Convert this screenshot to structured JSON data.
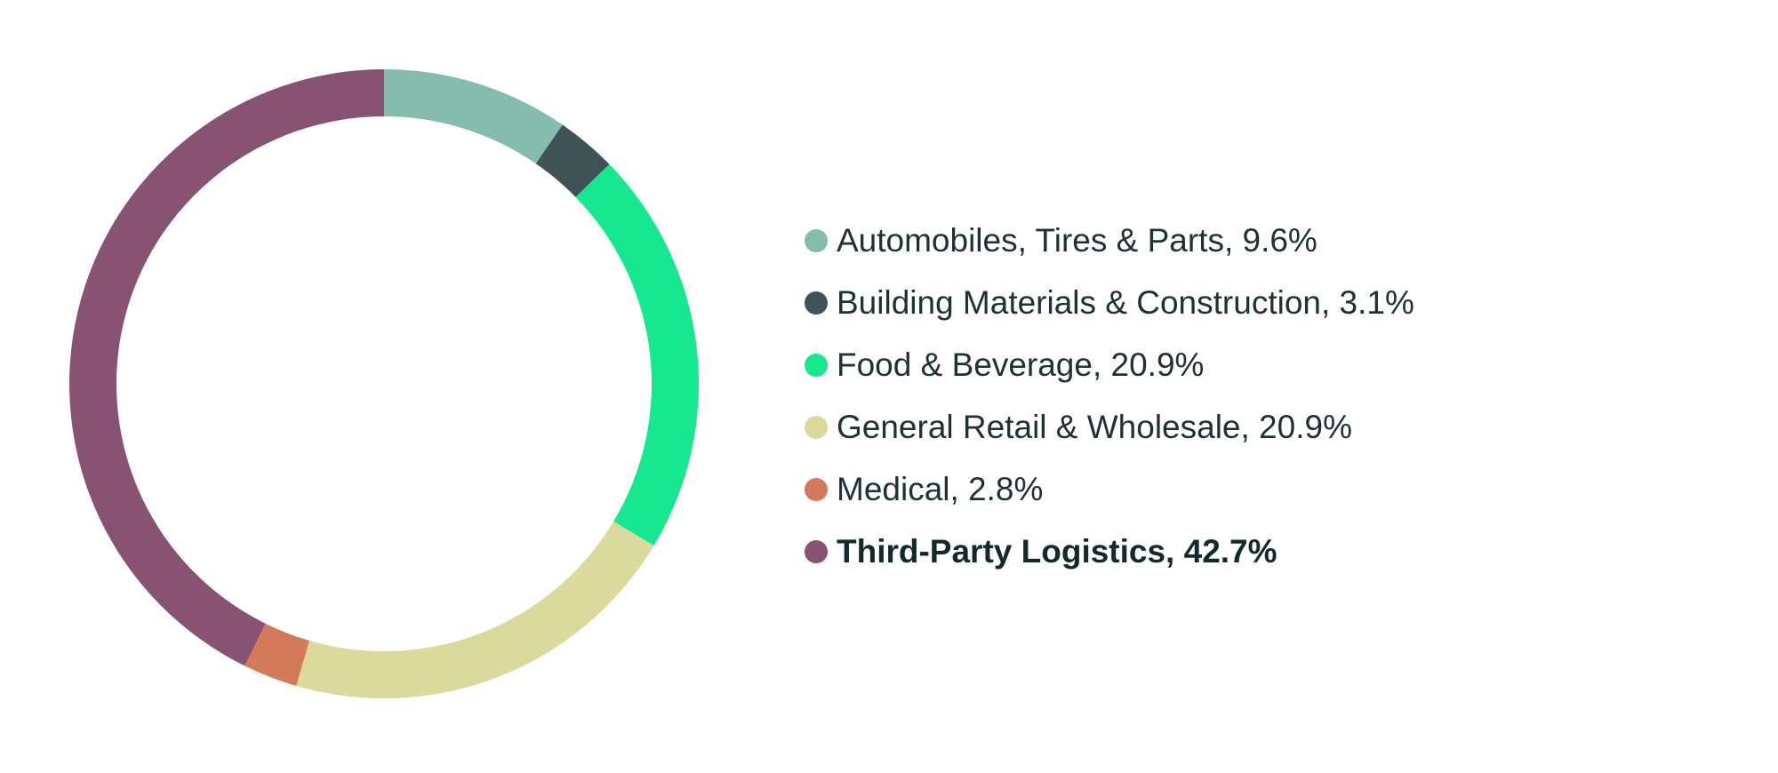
{
  "chart_data": {
    "type": "pie",
    "title": "",
    "donut": true,
    "legend_position": "right",
    "slices": [
      {
        "label": "Automobiles, Tires & Parts, 9.6%",
        "value": 9.6,
        "color": "#84bcad",
        "highlight": false
      },
      {
        "label": "Building Materials & Construction, 3.1%",
        "value": 3.1,
        "color": "#3f5256",
        "highlight": false
      },
      {
        "label": "Food & Beverage, 20.9%",
        "value": 20.9,
        "color": "#17e88f",
        "highlight": false
      },
      {
        "label": "General Retail & Wholesale, 20.9%",
        "value": 20.9,
        "color": "#dbd99b",
        "highlight": false
      },
      {
        "label": "Medical, 2.8%",
        "value": 2.8,
        "color": "#d47a5a",
        "highlight": false
      },
      {
        "label": "Third-Party Logistics, 42.7%",
        "value": 42.7,
        "color": "#885273",
        "highlight": true
      }
    ]
  }
}
